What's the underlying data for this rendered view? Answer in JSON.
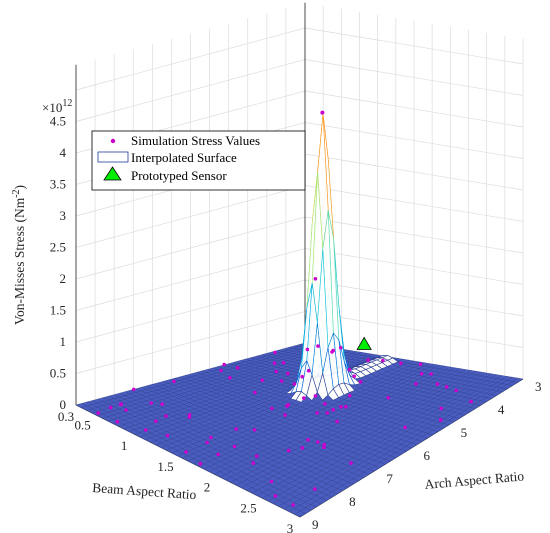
{
  "chart_data": {
    "type": "surface3d",
    "zlabel": "Von-Misses Stress (Nm",
    "zlabel_sup": "-2",
    "zlabel_close": ")",
    "xlabel": "Beam Aspect Ratio",
    "ylabel": "Arch Aspect Ratio",
    "z_exponent_base": "×10",
    "z_exponent_power": "12",
    "zlim": [
      0,
      5
    ],
    "z_ticks": [
      "0",
      "0.5",
      "1",
      "1.5",
      "2",
      "2.5",
      "3",
      "3.5",
      "4",
      "4.5"
    ],
    "beam_range": [
      0.3,
      3
    ],
    "beam_ticks": [
      "0.3",
      "0.5",
      "1",
      "1.5",
      "2",
      "2.5",
      "3"
    ],
    "arch_range": [
      3,
      9
    ],
    "arch_ticks": [
      "3",
      "4",
      "5",
      "6",
      "7",
      "8",
      "9"
    ],
    "peak": {
      "beam": 1.45,
      "arch": 5.0,
      "stress": 4.4
    },
    "secondary_ridge": {
      "beam": 1.45,
      "arch_from": 5.0,
      "arch_to": 3.2,
      "stress": 0.12
    },
    "sensor": {
      "beam": 1.5,
      "arch": 4.0,
      "stress": 0.5
    },
    "scatter_seed_count": 90,
    "grid_resolution": 42,
    "legend": [
      {
        "label": "Simulation Stress Values",
        "marker": "point",
        "color": "#cc00cc"
      },
      {
        "label": "Interpolated Surface",
        "marker": "box",
        "color": "#1f3d99"
      },
      {
        "label": "Prototyped Sensor",
        "marker": "triangle",
        "color": "#00ee00"
      }
    ],
    "grid": true,
    "legend_position": "top-left"
  }
}
